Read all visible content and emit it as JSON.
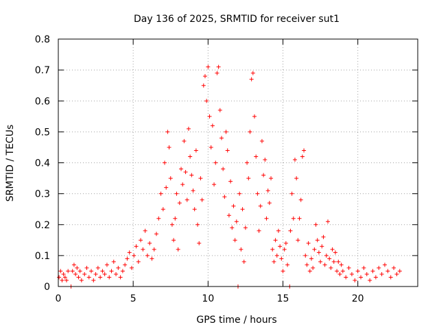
{
  "chart_data": {
    "type": "scatter",
    "title": "Day 136 of 2025, SRMTID for receiver sut1",
    "xlabel": "GPS time / hours",
    "ylabel": "SRMTID / TECUs",
    "xlim": [
      0,
      24
    ],
    "ylim": [
      0,
      0.8
    ],
    "xticks": [
      0,
      5,
      10,
      15,
      20
    ],
    "yticks": [
      0,
      0.1,
      0.2,
      0.3,
      0.4,
      0.5,
      0.6,
      0.7,
      0.8
    ],
    "xtick_labels": [
      "0",
      "5",
      "10",
      "15",
      "20"
    ],
    "ytick_labels": [
      "0",
      "0.1",
      "0.2",
      "0.3",
      "0.4",
      "0.5",
      "0.6",
      "0.7",
      "0.8"
    ],
    "grid": true,
    "marker": "+",
    "color": "#ff0000",
    "series": [
      {
        "name": "SRMTID",
        "points": [
          [
            0.05,
            0.03
          ],
          [
            0.15,
            0.05
          ],
          [
            0.25,
            0.02
          ],
          [
            0.35,
            0.04
          ],
          [
            0.45,
            0.03
          ],
          [
            0.55,
            0.02
          ],
          [
            0.65,
            0.05
          ],
          [
            0.85,
            0.0
          ],
          [
            0.95,
            0.05
          ],
          [
            1.05,
            0.07
          ],
          [
            1.15,
            0.04
          ],
          [
            1.25,
            0.06
          ],
          [
            1.35,
            0.03
          ],
          [
            1.45,
            0.05
          ],
          [
            1.55,
            0.02
          ],
          [
            1.75,
            0.04
          ],
          [
            1.9,
            0.06
          ],
          [
            2.05,
            0.03
          ],
          [
            2.2,
            0.05
          ],
          [
            2.35,
            0.02
          ],
          [
            2.5,
            0.04
          ],
          [
            2.65,
            0.06
          ],
          [
            2.8,
            0.03
          ],
          [
            2.95,
            0.05
          ],
          [
            3.1,
            0.04
          ],
          [
            3.25,
            0.07
          ],
          [
            3.4,
            0.03
          ],
          [
            3.55,
            0.05
          ],
          [
            3.7,
            0.08
          ],
          [
            3.85,
            0.04
          ],
          [
            4.0,
            0.06
          ],
          [
            4.15,
            0.03
          ],
          [
            4.3,
            0.05
          ],
          [
            4.45,
            0.07
          ],
          [
            4.6,
            0.09
          ],
          [
            4.75,
            0.11
          ],
          [
            4.9,
            0.06
          ],
          [
            5.05,
            0.1
          ],
          [
            5.2,
            0.13
          ],
          [
            5.35,
            0.08
          ],
          [
            5.5,
            0.15
          ],
          [
            5.65,
            0.12
          ],
          [
            5.8,
            0.18
          ],
          [
            5.95,
            0.1
          ],
          [
            6.1,
            0.14
          ],
          [
            6.25,
            0.09
          ],
          [
            6.4,
            0.12
          ],
          [
            6.55,
            0.17
          ],
          [
            6.7,
            0.22
          ],
          [
            6.85,
            0.3
          ],
          [
            7.0,
            0.25
          ],
          [
            7.1,
            0.4
          ],
          [
            7.2,
            0.32
          ],
          [
            7.3,
            0.5
          ],
          [
            7.4,
            0.45
          ],
          [
            7.5,
            0.35
          ],
          [
            7.6,
            0.2
          ],
          [
            7.7,
            0.15
          ],
          [
            7.8,
            0.22
          ],
          [
            7.9,
            0.3
          ],
          [
            8.0,
            0.12
          ],
          [
            8.1,
            0.27
          ],
          [
            8.2,
            0.38
          ],
          [
            8.3,
            0.33
          ],
          [
            8.4,
            0.47
          ],
          [
            8.5,
            0.37
          ],
          [
            8.6,
            0.28
          ],
          [
            8.7,
            0.51
          ],
          [
            8.8,
            0.42
          ],
          [
            8.9,
            0.36
          ],
          [
            9.0,
            0.31
          ],
          [
            9.1,
            0.25
          ],
          [
            9.2,
            0.44
          ],
          [
            9.3,
            0.2
          ],
          [
            9.4,
            0.14
          ],
          [
            9.5,
            0.35
          ],
          [
            9.6,
            0.28
          ],
          [
            9.7,
            0.65
          ],
          [
            9.8,
            0.68
          ],
          [
            9.9,
            0.6
          ],
          [
            10.0,
            0.71
          ],
          [
            10.1,
            0.55
          ],
          [
            10.2,
            0.45
          ],
          [
            10.3,
            0.52
          ],
          [
            10.4,
            0.33
          ],
          [
            10.5,
            0.4
          ],
          [
            10.6,
            0.69
          ],
          [
            10.7,
            0.71
          ],
          [
            10.8,
            0.57
          ],
          [
            10.9,
            0.48
          ],
          [
            11.0,
            0.38
          ],
          [
            11.1,
            0.29
          ],
          [
            11.2,
            0.5
          ],
          [
            11.3,
            0.44
          ],
          [
            11.4,
            0.23
          ],
          [
            11.5,
            0.34
          ],
          [
            11.6,
            0.19
          ],
          [
            11.7,
            0.26
          ],
          [
            11.8,
            0.15
          ],
          [
            11.9,
            0.21
          ],
          [
            12.0,
            0.0
          ],
          [
            12.1,
            0.3
          ],
          [
            12.2,
            0.12
          ],
          [
            12.3,
            0.25
          ],
          [
            12.4,
            0.08
          ],
          [
            12.5,
            0.19
          ],
          [
            12.6,
            0.4
          ],
          [
            12.7,
            0.35
          ],
          [
            12.8,
            0.5
          ],
          [
            12.9,
            0.67
          ],
          [
            13.0,
            0.69
          ],
          [
            13.1,
            0.55
          ],
          [
            13.2,
            0.42
          ],
          [
            13.3,
            0.3
          ],
          [
            13.4,
            0.18
          ],
          [
            13.5,
            0.26
          ],
          [
            13.6,
            0.47
          ],
          [
            13.7,
            0.36
          ],
          [
            13.8,
            0.41
          ],
          [
            13.9,
            0.22
          ],
          [
            14.0,
            0.31
          ],
          [
            14.1,
            0.27
          ],
          [
            14.2,
            0.35
          ],
          [
            14.3,
            0.12
          ],
          [
            14.4,
            0.08
          ],
          [
            14.5,
            0.15
          ],
          [
            14.6,
            0.1
          ],
          [
            14.7,
            0.18
          ],
          [
            14.8,
            0.13
          ],
          [
            14.9,
            0.09
          ],
          [
            15.0,
            0.05
          ],
          [
            15.1,
            0.12
          ],
          [
            15.2,
            0.14
          ],
          [
            15.3,
            0.07
          ],
          [
            15.45,
            0.0
          ],
          [
            15.5,
            0.18
          ],
          [
            15.6,
            0.3
          ],
          [
            15.7,
            0.22
          ],
          [
            15.8,
            0.41
          ],
          [
            15.9,
            0.35
          ],
          [
            16.0,
            0.15
          ],
          [
            16.1,
            0.22
          ],
          [
            16.2,
            0.28
          ],
          [
            16.3,
            0.42
          ],
          [
            16.4,
            0.44
          ],
          [
            16.5,
            0.1
          ],
          [
            16.6,
            0.07
          ],
          [
            16.7,
            0.14
          ],
          [
            16.8,
            0.05
          ],
          [
            16.9,
            0.09
          ],
          [
            17.0,
            0.06
          ],
          [
            17.1,
            0.12
          ],
          [
            17.2,
            0.2
          ],
          [
            17.3,
            0.15
          ],
          [
            17.4,
            0.11
          ],
          [
            17.5,
            0.08
          ],
          [
            17.6,
            0.13
          ],
          [
            17.7,
            0.16
          ],
          [
            17.8,
            0.07
          ],
          [
            17.9,
            0.1
          ],
          [
            18.0,
            0.21
          ],
          [
            18.1,
            0.09
          ],
          [
            18.2,
            0.06
          ],
          [
            18.3,
            0.12
          ],
          [
            18.4,
            0.08
          ],
          [
            18.5,
            0.11
          ],
          [
            18.6,
            0.05
          ],
          [
            18.7,
            0.08
          ],
          [
            18.8,
            0.04
          ],
          [
            18.9,
            0.07
          ],
          [
            19.0,
            0.05
          ],
          [
            19.2,
            0.03
          ],
          [
            19.4,
            0.06
          ],
          [
            19.6,
            0.04
          ],
          [
            19.8,
            0.02
          ],
          [
            20.0,
            0.05
          ],
          [
            20.2,
            0.03
          ],
          [
            20.4,
            0.06
          ],
          [
            20.6,
            0.04
          ],
          [
            20.8,
            0.02
          ],
          [
            21.0,
            0.05
          ],
          [
            21.2,
            0.03
          ],
          [
            21.4,
            0.06
          ],
          [
            21.6,
            0.04
          ],
          [
            21.8,
            0.07
          ],
          [
            22.0,
            0.05
          ],
          [
            22.2,
            0.03
          ],
          [
            22.4,
            0.06
          ],
          [
            22.6,
            0.04
          ],
          [
            22.8,
            0.05
          ]
        ]
      }
    ]
  }
}
